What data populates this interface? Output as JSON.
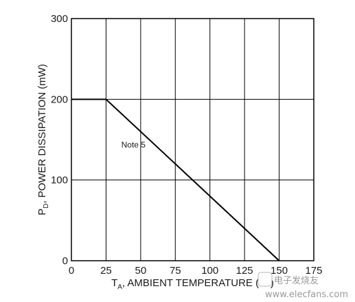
{
  "chart_data": {
    "type": "line",
    "title": "",
    "xlabel": {
      "main": "T",
      "sub": "A",
      "rest": ", AMBIENT TEMPERATURE (°C)"
    },
    "ylabel": {
      "main": "P",
      "sub": "D",
      "rest": ", POWER DISSIPATION (mW)"
    },
    "xlim": [
      0,
      175
    ],
    "ylim": [
      0,
      300
    ],
    "x_ticks": [
      0,
      25,
      50,
      75,
      100,
      125,
      150,
      175
    ],
    "y_ticks": [
      0,
      100,
      200,
      300
    ],
    "grid": true,
    "legend": "none",
    "series": [
      {
        "x": [
          0,
          25,
          150
        ],
        "y": [
          200,
          200,
          0
        ],
        "color": "#000000"
      }
    ],
    "annotations": [
      {
        "text": "Note 5",
        "x": 36,
        "y": 140
      }
    ]
  },
  "watermark": {
    "text": "电子发烧友",
    "site": "www.elecfans.com"
  }
}
